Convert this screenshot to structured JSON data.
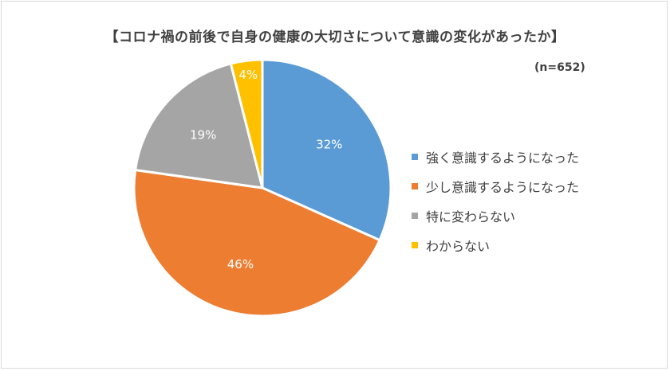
{
  "title": "【コロナ禍の前後で自身の健康の大切さについて意識の変化があったか】",
  "sample_size": "(n=652)",
  "chart_data": {
    "type": "pie",
    "categories": [
      "強く意識するようになった",
      "少し意識するようになった",
      "特に変わらない",
      "わからない"
    ],
    "values": [
      32,
      46,
      19,
      4
    ],
    "value_labels": [
      "32%",
      "46%",
      "19%",
      "4%"
    ],
    "colors": [
      "#5b9bd5",
      "#ed7d31",
      "#a5a5a5",
      "#ffc000"
    ],
    "legend_position": "right"
  }
}
